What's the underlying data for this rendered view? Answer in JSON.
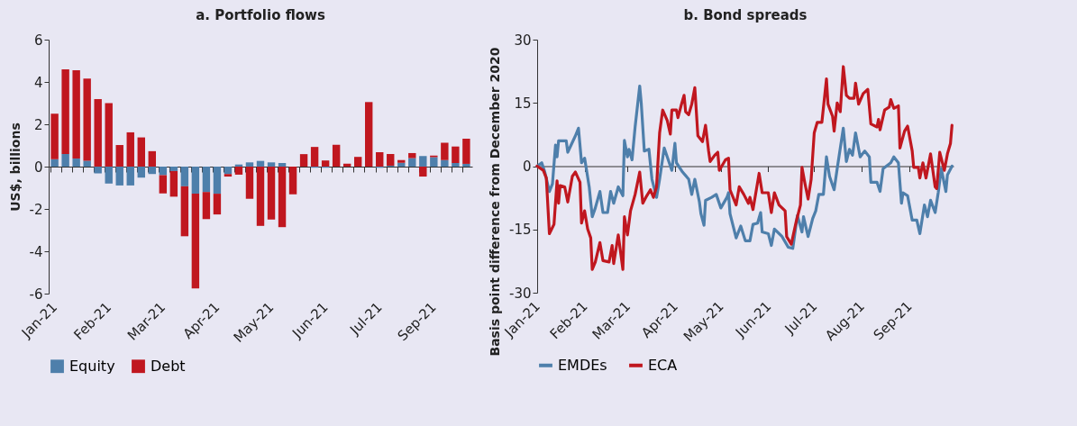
{
  "chart_data": [
    {
      "type": "bar",
      "title": "a. Portfolio flows",
      "ylabel": "US$, billions",
      "stacked": true,
      "legend": "bottom",
      "categories": [
        "Jan-21",
        null,
        null,
        null,
        null,
        "Feb-21",
        null,
        null,
        null,
        null,
        "Mar-21",
        null,
        null,
        null,
        null,
        "Apr-21",
        null,
        null,
        null,
        null,
        "May-21",
        null,
        null,
        null,
        null,
        "Jun-21",
        null,
        null,
        null,
        null,
        "Jul-21",
        null,
        null,
        null,
        null,
        "Sep-21",
        null,
        null,
        null
      ],
      "series": [
        {
          "name": "Equity",
          "color": "#4e7fab",
          "values": [
            0.35,
            0.6,
            0.38,
            0.28,
            -0.32,
            -0.8,
            -0.89,
            -0.89,
            -0.52,
            -0.35,
            -0.4,
            -0.21,
            -0.93,
            -1.28,
            -1.2,
            -1.28,
            -0.35,
            0.1,
            0.2,
            0.27,
            0.2,
            0.17,
            0,
            0,
            -0.05,
            -0.05,
            0,
            0,
            0,
            0,
            -0.05,
            0.04,
            0.18,
            0.4,
            0.5,
            0.45,
            0.31,
            0.17,
            0.13
          ]
        },
        {
          "name": "Debt",
          "color": "#c0171f",
          "values": [
            2.15,
            4.0,
            4.17,
            3.88,
            3.19,
            3.0,
            1.02,
            1.62,
            1.38,
            0.73,
            -0.87,
            -1.21,
            -2.36,
            -4.47,
            -1.28,
            -0.98,
            -0.12,
            -0.38,
            -1.52,
            -2.8,
            -2.5,
            -2.86,
            -1.31,
            0.59,
            0.93,
            0.29,
            1.03,
            0.14,
            0.46,
            3.05,
            0.68,
            0.56,
            0.13,
            0.24,
            -0.47,
            0.07,
            0.82,
            0.78,
            1.19
          ]
        }
      ],
      "ylim": [
        -6,
        6
      ],
      "yticks": [
        -6,
        -4,
        -2,
        0,
        2,
        4,
        6
      ]
    },
    {
      "type": "line",
      "title": "b. Bond spreads",
      "ylabel": "Basis point difference from December 2020",
      "legend": "bottom",
      "line_style": "solid",
      "xlim": [
        "2021-01-01",
        "2021-09-30"
      ],
      "xticks": [
        {
          "value": "2021-01-01",
          "label": "Jan-21"
        },
        {
          "value": "2021-02-01",
          "label": "Feb-21"
        },
        {
          "value": "2021-03-01",
          "label": "Mar-21"
        },
        {
          "value": "2021-04-01",
          "label": "Apr-21"
        },
        {
          "value": "2021-05-01",
          "label": "May-21"
        },
        {
          "value": "2021-06-01",
          "label": "Jun-21"
        },
        {
          "value": "2021-07-01",
          "label": "Jul-21"
        },
        {
          "value": "2021-08-01",
          "label": "Aug-21"
        },
        {
          "value": "2021-09-01",
          "label": "Sep-21"
        }
      ],
      "ylim": [
        -30,
        30
      ],
      "yticks": [
        -30,
        -15,
        0,
        15,
        30
      ],
      "series": [
        {
          "name": "EMDEs",
          "color": "#4e7fab",
          "x": [
            "2021-01-01",
            "2021-01-04",
            "2021-01-06",
            "2021-01-09",
            "2021-01-11",
            "2021-01-13",
            "2021-01-14",
            "2021-01-15",
            "2021-01-20",
            "2021-01-21",
            "2021-01-26",
            "2021-01-28",
            "2021-01-30",
            "2021-02-01",
            "2021-02-02",
            "2021-02-04",
            "2021-02-06",
            "2021-02-08",
            "2021-02-11",
            "2021-02-13",
            "2021-02-16",
            "2021-02-18",
            "2021-02-20",
            "2021-02-23",
            "2021-02-26",
            "2021-02-27",
            "2021-03-01",
            "2021-03-02",
            "2021-03-04",
            "2021-03-06",
            "2021-03-09",
            "2021-03-10",
            "2021-03-12",
            "2021-03-15",
            "2021-03-17",
            "2021-03-20",
            "2021-03-22",
            "2021-03-25",
            "2021-03-27",
            "2021-03-30",
            "2021-04-01",
            "2021-04-02",
            "2021-04-06",
            "2021-04-10",
            "2021-04-12",
            "2021-04-14",
            "2021-04-17",
            "2021-04-18",
            "2021-04-20",
            "2021-04-21",
            "2021-04-25",
            "2021-04-28",
            "2021-05-01",
            "2021-05-05",
            "2021-05-06",
            "2021-05-07",
            "2021-05-11",
            "2021-05-14",
            "2021-05-17",
            "2021-05-20",
            "2021-05-22",
            "2021-05-25",
            "2021-05-27",
            "2021-05-28",
            "2021-06-01",
            "2021-06-03",
            "2021-06-05",
            "2021-06-10",
            "2021-06-14",
            "2021-06-17",
            "2021-06-20",
            "2021-06-23",
            "2021-06-24",
            "2021-06-27",
            "2021-06-30",
            "2021-07-02",
            "2021-07-04",
            "2021-07-07",
            "2021-07-09",
            "2021-07-11",
            "2021-07-14",
            "2021-07-16",
            "2021-07-20",
            "2021-07-22",
            "2021-07-24",
            "2021-07-26",
            "2021-07-28",
            "2021-07-31",
            "2021-08-03",
            "2021-08-06",
            "2021-08-07",
            "2021-08-11",
            "2021-08-13",
            "2021-08-15",
            "2021-08-20",
            "2021-08-22",
            "2021-08-25",
            "2021-08-27",
            "2021-08-28",
            "2021-08-31",
            "2021-09-03",
            "2021-09-06",
            "2021-09-08",
            "2021-09-11",
            "2021-09-13",
            "2021-09-15",
            "2021-09-18",
            "2021-09-20",
            "2021-09-22",
            "2021-09-25",
            "2021-09-26",
            "2021-09-29"
          ],
          "values": [
            0,
            0.8,
            -1.4,
            -6,
            -4.2,
            5,
            2.2,
            6,
            6,
            3.3,
            7.2,
            9,
            0.8,
            1.9,
            -0.3,
            -4.9,
            -12,
            -9.9,
            -6,
            -11,
            -11,
            -6,
            -8.8,
            -4.9,
            -7,
            6.1,
            2.2,
            4,
            1.5,
            9.3,
            19,
            15,
            3.6,
            4,
            -3.1,
            -7.4,
            -3.1,
            4.3,
            2.2,
            -1,
            5.4,
            0.8,
            -1.4,
            -3.1,
            -6.7,
            -3.1,
            -8.5,
            -11.3,
            -14,
            -8.1,
            -7.4,
            -6.7,
            -9.9,
            -7.4,
            -6.3,
            -11.3,
            -17,
            -14.2,
            -17.7,
            -17.7,
            -13.8,
            -13.5,
            -11,
            -15.6,
            -16,
            -18.8,
            -14.9,
            -16.7,
            -19.2,
            -19.5,
            -11.7,
            -15.6,
            -12,
            -16.7,
            -12.4,
            -10.6,
            -6.7,
            -6.7,
            2.2,
            -2.4,
            -5.6,
            -0.6,
            9,
            1.1,
            4,
            2.6,
            7.9,
            2.2,
            3.6,
            2.2,
            -3.8,
            -3.8,
            -6,
            -0.6,
            0.8,
            2.2,
            0.8,
            -8.8,
            -6.3,
            -7,
            -12.8,
            -12.8,
            -16,
            -9.2,
            -12,
            -8.1,
            -11,
            -6.3,
            -0.6,
            -6,
            -2.1,
            0
          ]
        },
        {
          "name": "ECA",
          "color": "#c0171f",
          "x": [
            "2021-01-01",
            "2021-01-05",
            "2021-01-07",
            "2021-01-09",
            "2021-01-12",
            "2021-01-14",
            "2021-01-15",
            "2021-01-16",
            "2021-01-19",
            "2021-01-21",
            "2021-01-24",
            "2021-01-26",
            "2021-01-29",
            "2021-01-30",
            "2021-02-01",
            "2021-02-03",
            "2021-02-05",
            "2021-02-06",
            "2021-02-08",
            "2021-02-11",
            "2021-02-13",
            "2021-02-17",
            "2021-02-19",
            "2021-02-20",
            "2021-02-23",
            "2021-02-26",
            "2021-02-27",
            "2021-03-01",
            "2021-03-03",
            "2021-03-06",
            "2021-03-09",
            "2021-03-11",
            "2021-03-13",
            "2021-03-16",
            "2021-03-18",
            "2021-03-20",
            "2021-03-22",
            "2021-03-24",
            "2021-03-27",
            "2021-03-29",
            "2021-03-30",
            "2021-04-02",
            "2021-04-03",
            "2021-04-05",
            "2021-04-07",
            "2021-04-08",
            "2021-04-10",
            "2021-04-12",
            "2021-04-14",
            "2021-04-16",
            "2021-04-19",
            "2021-04-21",
            "2021-04-23",
            "2021-04-24",
            "2021-04-27",
            "2021-04-29",
            "2021-04-30",
            "2021-05-04",
            "2021-05-06",
            "2021-05-07",
            "2021-05-11",
            "2021-05-13",
            "2021-05-16",
            "2021-05-19",
            "2021-05-20",
            "2021-05-22",
            "2021-05-26",
            "2021-05-28",
            "2021-06-01",
            "2021-06-03",
            "2021-06-05",
            "2021-06-08",
            "2021-06-12",
            "2021-06-13",
            "2021-06-16",
            "2021-06-19",
            "2021-06-22",
            "2021-06-23",
            "2021-06-25",
            "2021-06-27",
            "2021-06-29",
            "2021-07-01",
            "2021-07-03",
            "2021-07-06",
            "2021-07-09",
            "2021-07-10",
            "2021-07-13",
            "2021-07-14",
            "2021-07-16",
            "2021-07-18",
            "2021-07-20",
            "2021-07-22",
            "2021-07-24",
            "2021-07-27",
            "2021-07-28",
            "2021-07-30",
            "2021-08-02",
            "2021-08-05",
            "2021-08-07",
            "2021-08-11",
            "2021-08-12",
            "2021-08-13",
            "2021-08-16",
            "2021-08-19",
            "2021-08-20",
            "2021-08-22",
            "2021-08-25",
            "2021-08-26",
            "2021-08-29",
            "2021-08-31",
            "2021-09-03",
            "2021-09-04",
            "2021-09-07",
            "2021-09-08",
            "2021-09-10",
            "2021-09-12",
            "2021-09-15",
            "2021-09-18",
            "2021-09-19",
            "2021-09-21",
            "2021-09-24",
            "2021-09-26",
            "2021-09-28",
            "2021-09-29"
          ],
          "values": [
            0,
            -1,
            -2.8,
            -16,
            -13.8,
            -3.5,
            -8.8,
            -4.6,
            -4.9,
            -8.5,
            -2.4,
            -1.4,
            -3.8,
            -13.5,
            -10.6,
            -14.9,
            -17,
            -24.5,
            -22.7,
            -18.1,
            -22.4,
            -22.7,
            -18.8,
            -23.1,
            -16.3,
            -24.5,
            -12,
            -16.3,
            -10.6,
            -6.7,
            -1.4,
            -8.8,
            -7.4,
            -5.6,
            -7.4,
            -4.9,
            7.9,
            13.3,
            10.8,
            7.6,
            13.3,
            13.3,
            11.5,
            14.3,
            16.8,
            12.9,
            12.2,
            14.7,
            18.6,
            7.2,
            5.8,
            9.7,
            3.6,
            1.1,
            2.6,
            3.3,
            -1,
            1.5,
            1.9,
            -5.6,
            -9.2,
            -4.9,
            -6.7,
            -8.8,
            -7.4,
            -10.3,
            -1.7,
            -6.3,
            -6.3,
            -11,
            -6.3,
            -9.2,
            -10.6,
            -16.7,
            -18.5,
            -13.5,
            -9.2,
            -0.3,
            -4.2,
            -7.8,
            -3.1,
            7.9,
            10.4,
            10.4,
            20.7,
            14.7,
            11.8,
            8.3,
            15,
            12.9,
            23.6,
            16.8,
            16.1,
            16.1,
            19.7,
            14.7,
            17.2,
            18.2,
            10,
            9.3,
            11.1,
            8.6,
            13.3,
            14,
            15.8,
            13.7,
            14.3,
            4.3,
            8.3,
            9.5,
            3.6,
            -0.3,
            -0.3,
            -2.8,
            0.8,
            -2.8,
            2.9,
            -4.9,
            -5.3,
            3.3,
            -1,
            2.9,
            5.4,
            9.7
          ]
        }
      ]
    }
  ]
}
